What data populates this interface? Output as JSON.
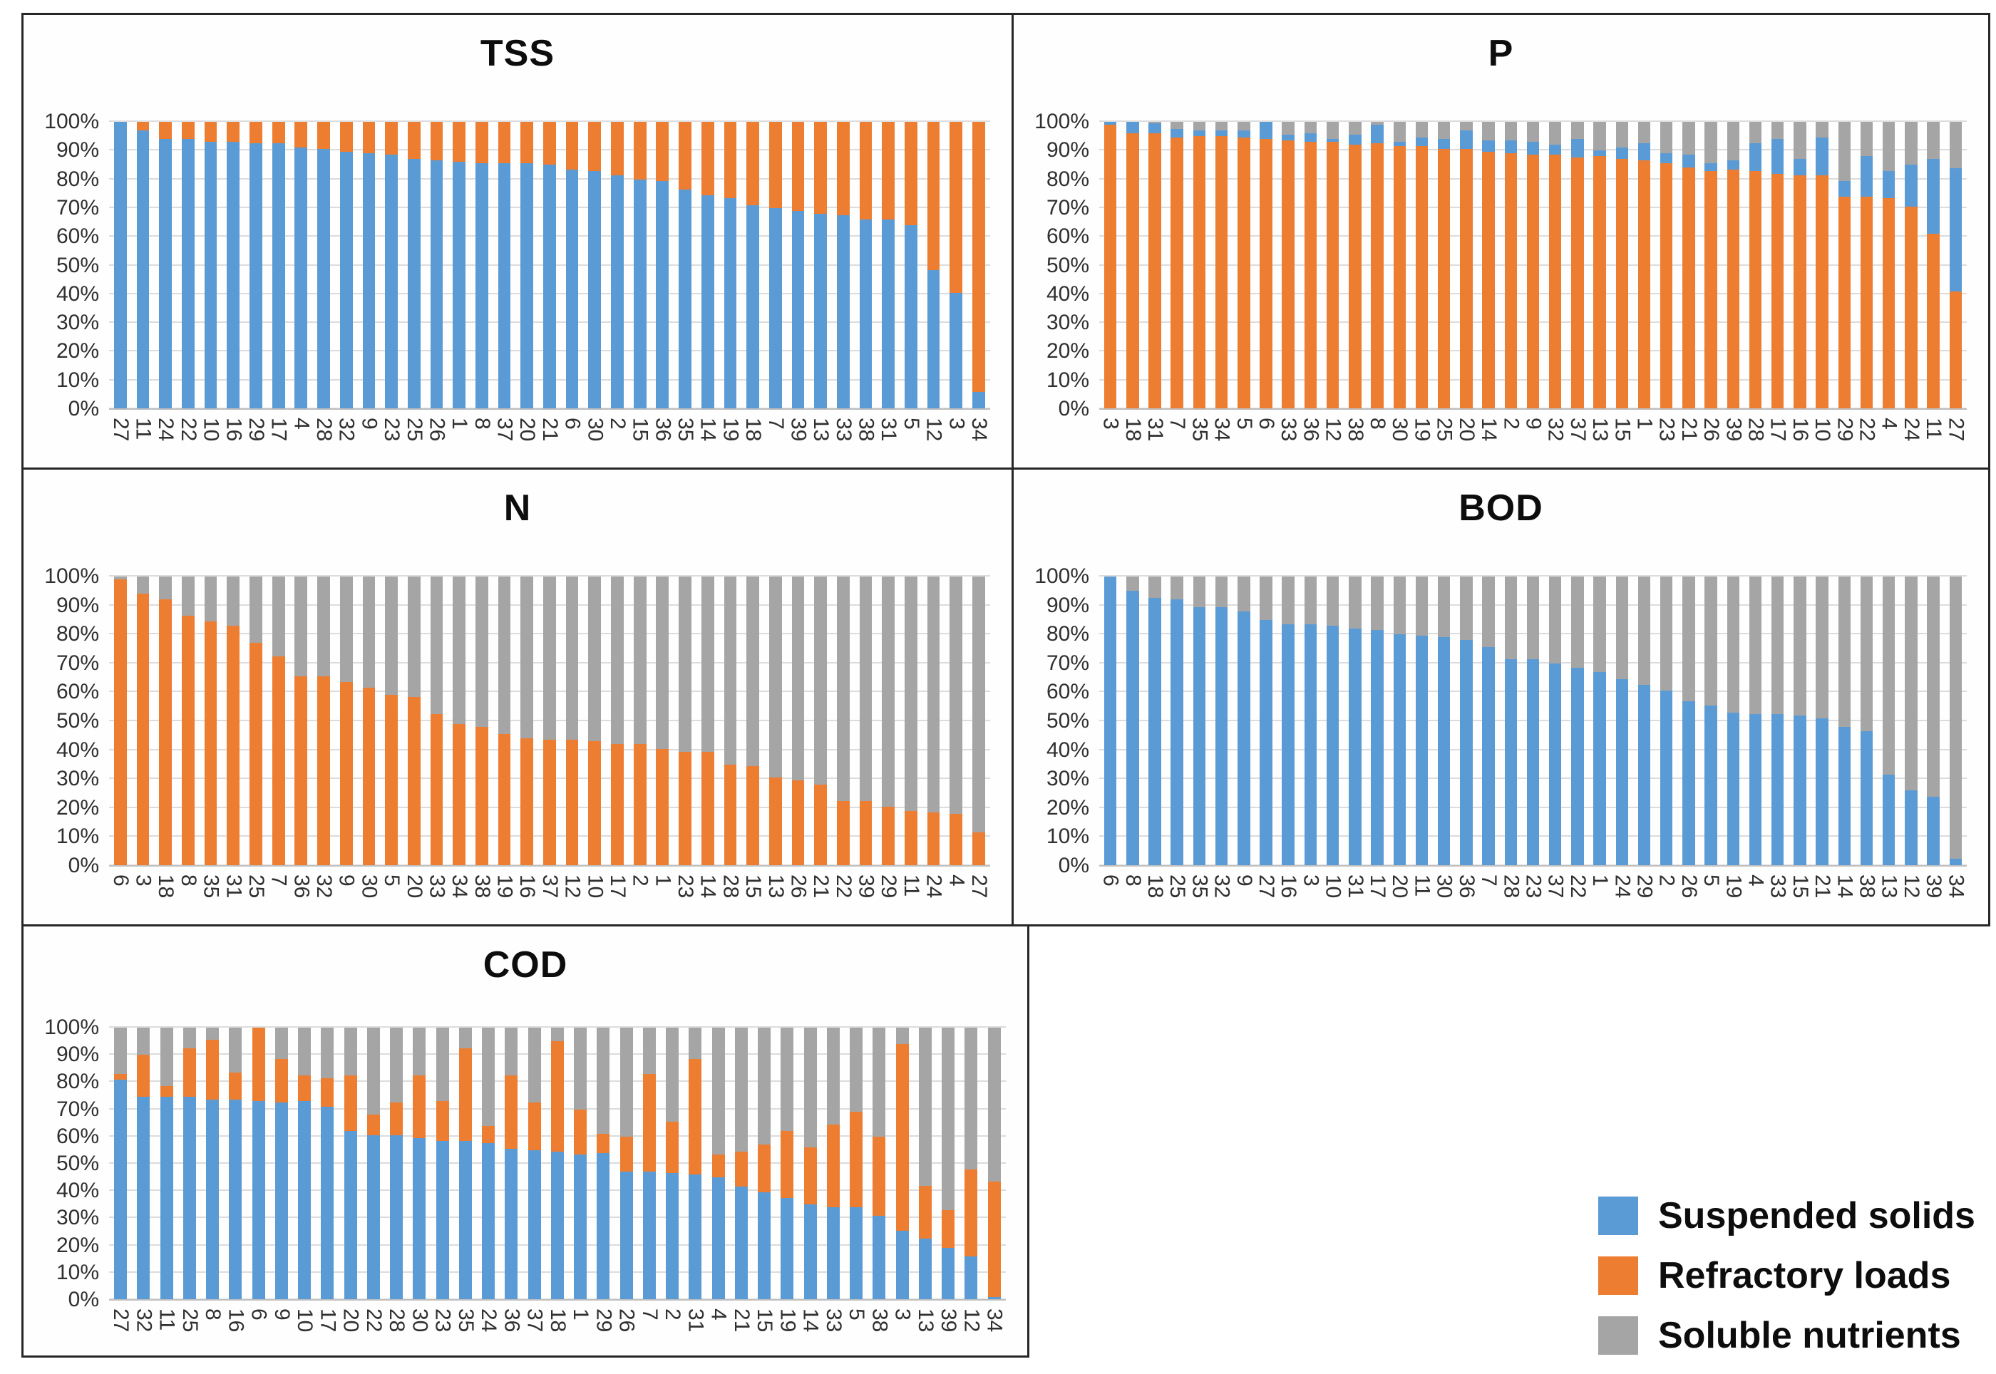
{
  "y_ticks": [
    "0%",
    "10%",
    "20%",
    "30%",
    "40%",
    "50%",
    "60%",
    "70%",
    "80%",
    "90%",
    "100%"
  ],
  "colors": {
    "blue": "#5B9BD5",
    "orange": "#ED7D31",
    "gray": "#A5A5A5"
  },
  "legend": {
    "items": [
      {
        "label": "Suspended solids",
        "color": "#5B9BD5"
      },
      {
        "label": "Refractory loads",
        "color": "#ED7D31"
      },
      {
        "label": "Soluble nutrients",
        "color": "#A5A5A5"
      }
    ]
  },
  "chart_data": [
    {
      "type": "bar",
      "stacked": true,
      "percent": true,
      "title": "TSS",
      "xlabel": "",
      "ylabel": "",
      "ylim": [
        0,
        100
      ],
      "grid": true,
      "categories": [
        "27",
        "11",
        "24",
        "22",
        "10",
        "16",
        "29",
        "17",
        "4",
        "28",
        "32",
        "9",
        "23",
        "25",
        "26",
        "1",
        "8",
        "37",
        "20",
        "21",
        "6",
        "30",
        "2",
        "15",
        "36",
        "35",
        "14",
        "19",
        "18",
        "7",
        "39",
        "13",
        "33",
        "38",
        "31",
        "5",
        "12",
        "3",
        "34"
      ],
      "series": [
        {
          "name": "Suspended solids",
          "color": "#5B9BD5",
          "values": [
            100,
            97,
            94,
            94,
            93,
            93,
            92.5,
            92.5,
            91,
            90.5,
            89.5,
            89,
            88.5,
            87,
            86.5,
            86,
            85.5,
            85.5,
            85.5,
            85,
            83.5,
            83,
            81.5,
            80,
            79.5,
            76.5,
            74.5,
            73.5,
            71,
            70,
            69,
            68,
            67.5,
            66,
            66,
            64,
            48.5,
            40.5,
            6
          ]
        },
        {
          "name": "Refractory loads",
          "color": "#ED7D31",
          "values": [
            0,
            3,
            6,
            6,
            7,
            7,
            7.5,
            7.5,
            9,
            9.5,
            10.5,
            11,
            11.5,
            13,
            13.5,
            14,
            14.5,
            14.5,
            14.5,
            15,
            16.5,
            17,
            18.5,
            20,
            20.5,
            23.5,
            25.5,
            26.5,
            29,
            30,
            31,
            32,
            32.5,
            34,
            34,
            36,
            51.5,
            59.5,
            94
          ]
        }
      ]
    },
    {
      "type": "bar",
      "stacked": true,
      "percent": true,
      "title": "P",
      "xlabel": "",
      "ylabel": "",
      "ylim": [
        0,
        100
      ],
      "grid": true,
      "categories": [
        "3",
        "18",
        "31",
        "7",
        "35",
        "34",
        "5",
        "6",
        "33",
        "36",
        "12",
        "38",
        "8",
        "30",
        "19",
        "25",
        "20",
        "14",
        "2",
        "9",
        "32",
        "37",
        "13",
        "15",
        "1",
        "23",
        "21",
        "26",
        "39",
        "28",
        "17",
        "16",
        "10",
        "29",
        "22",
        "4",
        "24",
        "11",
        "27"
      ],
      "series": [
        {
          "name": "Refractory loads",
          "color": "#ED7D31",
          "values": [
            99,
            96,
            96,
            94.5,
            95,
            95,
            94.5,
            94,
            93.5,
            93,
            93,
            92,
            92.5,
            91.5,
            91.5,
            90.5,
            90.5,
            89.5,
            89,
            88.5,
            88.5,
            87.5,
            88,
            87,
            86.5,
            85.5,
            84,
            83,
            83.5,
            83,
            82,
            81.5,
            81.5,
            74,
            74,
            73.5,
            70.5,
            61,
            41
          ]
        },
        {
          "name": "Suspended solids",
          "color": "#5B9BD5",
          "values": [
            1,
            4,
            3.5,
            3,
            2,
            2,
            2.5,
            6,
            2,
            3,
            1,
            3.5,
            6.5,
            1.5,
            3,
            3.5,
            6.5,
            4,
            4.5,
            4.5,
            3.5,
            6.5,
            2,
            4,
            6,
            3.5,
            4.5,
            2.5,
            3,
            9.5,
            12,
            5.5,
            13,
            5.5,
            14,
            9.5,
            14.5,
            26,
            43
          ]
        },
        {
          "name": "Soluble nutrients",
          "color": "#A5A5A5",
          "values": [
            0,
            0,
            0.5,
            2.5,
            3,
            3,
            3,
            0,
            4.5,
            4,
            6,
            4.5,
            1,
            7,
            5.5,
            6,
            3,
            6.5,
            6.5,
            7,
            8,
            6,
            10,
            9,
            7.5,
            11,
            11.5,
            14.5,
            13.5,
            7.5,
            6,
            13,
            5.5,
            20.5,
            12,
            17,
            15,
            13,
            16
          ]
        }
      ]
    },
    {
      "type": "bar",
      "stacked": true,
      "percent": true,
      "title": "N",
      "xlabel": "",
      "ylabel": "",
      "ylim": [
        0,
        100
      ],
      "grid": true,
      "categories": [
        "6",
        "3",
        "18",
        "8",
        "35",
        "31",
        "25",
        "7",
        "36",
        "32",
        "9",
        "30",
        "5",
        "20",
        "33",
        "34",
        "38",
        "19",
        "16",
        "37",
        "12",
        "10",
        "17",
        "2",
        "1",
        "23",
        "14",
        "28",
        "15",
        "13",
        "26",
        "21",
        "22",
        "39",
        "29",
        "11",
        "24",
        "4",
        "27"
      ],
      "series": [
        {
          "name": "Refractory loads",
          "color": "#ED7D31",
          "values": [
            99,
            94,
            92,
            86.5,
            84.5,
            83,
            77,
            72.5,
            65.5,
            65.5,
            63.5,
            61.5,
            59,
            58.5,
            52.5,
            49,
            48,
            45.5,
            44,
            43.5,
            43.5,
            43,
            42,
            42,
            40.5,
            39.5,
            39.5,
            35,
            34.5,
            30.5,
            29.5,
            28,
            22.5,
            22.5,
            20.5,
            19,
            18.5,
            18,
            11.5
          ]
        },
        {
          "name": "Soluble nutrients",
          "color": "#A5A5A5",
          "values": [
            1,
            6,
            8,
            13.5,
            15.5,
            17,
            23,
            27.5,
            34.5,
            34.5,
            36.5,
            38.5,
            41,
            41.5,
            47.5,
            51,
            52,
            54.5,
            56,
            56.5,
            56.5,
            57,
            58,
            58,
            59.5,
            60.5,
            60.5,
            65,
            65.5,
            69.5,
            70.5,
            72,
            77.5,
            77.5,
            79.5,
            81,
            81.5,
            82,
            88.5
          ]
        }
      ]
    },
    {
      "type": "bar",
      "stacked": true,
      "percent": true,
      "title": "BOD",
      "xlabel": "",
      "ylabel": "",
      "ylim": [
        0,
        100
      ],
      "grid": true,
      "categories": [
        "6",
        "8",
        "18",
        "25",
        "35",
        "32",
        "9",
        "27",
        "16",
        "3",
        "10",
        "31",
        "17",
        "20",
        "11",
        "30",
        "36",
        "7",
        "28",
        "23",
        "37",
        "22",
        "1",
        "24",
        "29",
        "2",
        "26",
        "5",
        "19",
        "4",
        "33",
        "15",
        "21",
        "14",
        "38",
        "13",
        "12",
        "39",
        "34"
      ],
      "series": [
        {
          "name": "Suspended solids",
          "color": "#5B9BD5",
          "values": [
            100,
            95,
            92.5,
            92,
            89.5,
            89.5,
            88,
            85,
            83.5,
            83.5,
            83,
            82,
            81.5,
            80,
            79.5,
            79,
            78,
            75.5,
            71.5,
            71.5,
            70,
            68.5,
            67,
            64.5,
            62.5,
            60.5,
            57,
            55.5,
            53,
            52.5,
            52.5,
            52,
            51,
            48,
            46.5,
            31.5,
            26,
            24,
            2.5
          ]
        },
        {
          "name": "Soluble nutrients",
          "color": "#A5A5A5",
          "values": [
            0,
            5,
            7.5,
            8,
            10.5,
            10.5,
            12,
            15,
            16.5,
            16.5,
            17,
            18,
            18.5,
            20,
            20.5,
            21,
            22,
            24.5,
            28.5,
            28.5,
            30,
            31.5,
            33,
            35.5,
            37.5,
            39.5,
            43,
            44.5,
            47,
            47.5,
            47.5,
            48,
            49,
            52,
            53.5,
            68.5,
            74,
            76,
            97.5
          ]
        }
      ]
    },
    {
      "type": "bar",
      "stacked": true,
      "percent": true,
      "title": "COD",
      "xlabel": "",
      "ylabel": "",
      "ylim": [
        0,
        100
      ],
      "grid": true,
      "categories": [
        "27",
        "32",
        "11",
        "25",
        "8",
        "16",
        "6",
        "9",
        "10",
        "17",
        "20",
        "22",
        "28",
        "30",
        "23",
        "35",
        "24",
        "36",
        "37",
        "18",
        "1",
        "29",
        "26",
        "7",
        "2",
        "31",
        "4",
        "21",
        "15",
        "19",
        "14",
        "33",
        "5",
        "38",
        "3",
        "13",
        "39",
        "12",
        "34"
      ],
      "series": [
        {
          "name": "Suspended solids",
          "color": "#5B9BD5",
          "values": [
            81,
            74.5,
            74.5,
            74.5,
            73.5,
            73.5,
            73,
            72.5,
            73,
            71,
            62,
            60.5,
            60.5,
            59.5,
            58.5,
            58.5,
            57.5,
            55.5,
            55,
            54.5,
            53.5,
            54,
            47,
            47,
            46.5,
            46,
            45,
            41.5,
            39.5,
            37.5,
            35,
            34,
            34,
            31,
            25.5,
            22.5,
            19,
            16,
            1
          ]
        },
        {
          "name": "Refractory loads",
          "color": "#ED7D31",
          "values": [
            2,
            15.5,
            4,
            18,
            22,
            10,
            27,
            16,
            9.5,
            10.5,
            20.5,
            7.5,
            12,
            23,
            14.5,
            34,
            6.5,
            27,
            17.5,
            40.5,
            16.5,
            7,
            13,
            36,
            19,
            42.5,
            8.5,
            13,
            17.5,
            24.5,
            21,
            30.5,
            35,
            29,
            68.5,
            19.5,
            14,
            32,
            42.5
          ]
        },
        {
          "name": "Soluble nutrients",
          "color": "#A5A5A5",
          "values": [
            17,
            10,
            21.5,
            7.5,
            4.5,
            16.5,
            0,
            11.5,
            17.5,
            18.5,
            17.5,
            32,
            27.5,
            17.5,
            27,
            7.5,
            36,
            17.5,
            27.5,
            5,
            30,
            39,
            40,
            17,
            34.5,
            11.5,
            46.5,
            45.5,
            43,
            38,
            44,
            35.5,
            31,
            40,
            6,
            58,
            67,
            52,
            56.5
          ]
        }
      ]
    }
  ]
}
